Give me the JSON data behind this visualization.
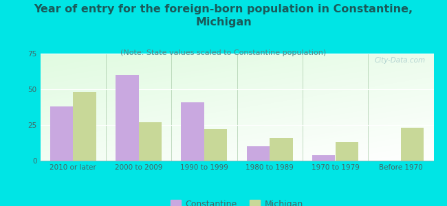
{
  "title": "Year of entry for the foreign-born population in Constantine,\nMichigan",
  "subtitle": "(Note: State values scaled to Constantine population)",
  "categories": [
    "2010 or later",
    "2000 to 2009",
    "1990 to 1999",
    "1980 to 1989",
    "1970 to 1979",
    "Before 1970"
  ],
  "constantine_values": [
    38,
    60,
    41,
    10,
    4,
    0
  ],
  "michigan_values": [
    48,
    27,
    22,
    16,
    13,
    23
  ],
  "constantine_color": "#c9a8e0",
  "michigan_color": "#c8d898",
  "background_color": "#00e5e5",
  "ylim": [
    0,
    75
  ],
  "yticks": [
    0,
    25,
    50,
    75
  ],
  "bar_width": 0.35,
  "legend_constantine": "Constantine",
  "legend_michigan": "Michigan",
  "title_fontsize": 11.5,
  "subtitle_fontsize": 8,
  "tick_fontsize": 7.5,
  "legend_fontsize": 9,
  "title_color": "#1a5a5a",
  "subtitle_color": "#558888",
  "tick_color": "#446666",
  "watermark": "City-Data.com",
  "watermark_color": "#aacccc"
}
